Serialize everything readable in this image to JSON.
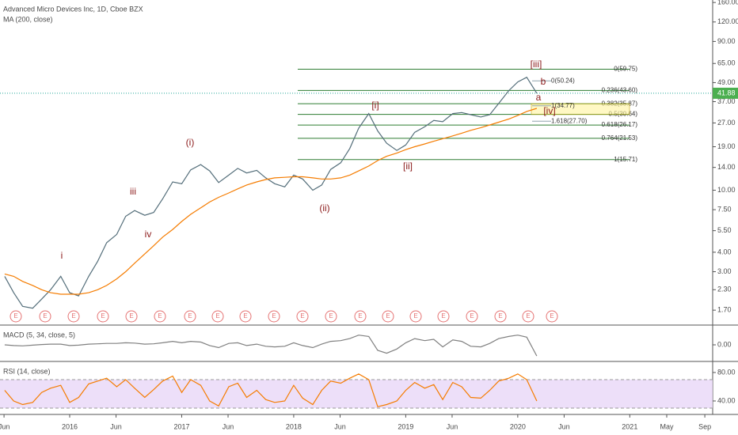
{
  "chart_data": [
    {
      "type": "line",
      "title": "Advanced Micro Devices Inc, 1D, Cboe BZX",
      "log_scale": true,
      "x": [
        2015.42,
        2015.5,
        2015.58,
        2015.67,
        2015.75,
        2015.83,
        2015.92,
        2016.0,
        2016.08,
        2016.17,
        2016.25,
        2016.33,
        2016.42,
        2016.5,
        2016.58,
        2016.67,
        2016.75,
        2016.83,
        2016.92,
        2017.0,
        2017.08,
        2017.17,
        2017.25,
        2017.33,
        2017.42,
        2017.5,
        2017.58,
        2017.67,
        2017.75,
        2017.83,
        2017.92,
        2018.0,
        2018.08,
        2018.17,
        2018.25,
        2018.33,
        2018.42,
        2018.5,
        2018.58,
        2018.67,
        2018.75,
        2018.83,
        2018.92,
        2019.0,
        2019.08,
        2019.17,
        2019.25,
        2019.33,
        2019.42,
        2019.5,
        2019.58,
        2019.67,
        2019.75,
        2019.83,
        2019.92,
        2020.0,
        2020.08,
        2020.17
      ],
      "series": [
        {
          "color": "#546e7a",
          "values": [
            2.8,
            2.2,
            1.8,
            1.75,
            2.0,
            2.3,
            2.8,
            2.2,
            2.1,
            2.8,
            3.5,
            4.6,
            5.2,
            6.8,
            7.4,
            6.9,
            7.2,
            8.8,
            11.3,
            11.0,
            13.5,
            14.6,
            13.3,
            11.2,
            12.5,
            13.8,
            12.9,
            13.4,
            12.0,
            11.0,
            10.5,
            12.5,
            11.8,
            10.0,
            10.8,
            13.6,
            15.0,
            18.5,
            25.0,
            31.0,
            24.0,
            20.0,
            18.0,
            19.5,
            23.5,
            25.5,
            28.0,
            27.5,
            31.0,
            31.5,
            30.5,
            29.5,
            30.5,
            36.0,
            43.5,
            49.5,
            53.0,
            41.88
          ]
        },
        {
          "name": "MA (200, close)",
          "color": "#f57c00",
          "values": [
            2.9,
            2.8,
            2.6,
            2.45,
            2.3,
            2.2,
            2.15,
            2.15,
            2.15,
            2.2,
            2.3,
            2.45,
            2.7,
            3.0,
            3.4,
            3.9,
            4.4,
            5.0,
            5.6,
            6.3,
            7.0,
            7.7,
            8.4,
            9.0,
            9.6,
            10.2,
            10.8,
            11.3,
            11.7,
            12.0,
            12.1,
            12.2,
            12.2,
            12.0,
            11.8,
            11.8,
            12.0,
            12.5,
            13.3,
            14.3,
            15.5,
            16.5,
            17.3,
            18.2,
            19.0,
            19.8,
            20.6,
            21.4,
            22.3,
            23.2,
            24.2,
            25.2,
            26.2,
            27.3,
            28.6,
            30.2,
            32.0,
            33.5
          ]
        }
      ],
      "last_price": 41.88,
      "xlim": [
        2015.378,
        2021.74
      ],
      "xticks": [
        {
          "value": 2015.414,
          "label": "Jun"
        },
        2016,
        {
          "value": 2016.414,
          "label": "Jun"
        },
        2017,
        {
          "value": 2017.414,
          "label": "Jun"
        },
        2018,
        {
          "value": 2018.414,
          "label": "Jun"
        },
        2019,
        {
          "value": 2019.414,
          "label": "Jun"
        },
        2020,
        {
          "value": 2020.414,
          "label": "Jun"
        },
        2021,
        {
          "value": 2021.33,
          "label": "May"
        },
        {
          "value": 2021.67,
          "label": "Sep"
        }
      ],
      "ylim": [
        1.38,
        166
      ],
      "yticks": [
        {
          "value": 1.7,
          "label": "1.70"
        },
        {
          "value": 2.3,
          "label": "2.30"
        },
        {
          "value": 3,
          "label": "3.00"
        },
        {
          "value": 4,
          "label": "4.00"
        },
        {
          "value": 5.5,
          "label": "5.50"
        },
        {
          "value": 7.5,
          "label": "7.50"
        },
        {
          "value": 10,
          "label": "10.00"
        },
        {
          "value": 14,
          "label": "14.00"
        },
        {
          "value": 19,
          "label": "19.00"
        },
        {
          "value": 27,
          "label": "27.00"
        },
        {
          "value": 37,
          "label": "37.00"
        },
        {
          "value": 49,
          "label": "49.00"
        },
        {
          "value": 65,
          "label": "65.00"
        },
        {
          "value": 90,
          "label": "90.00"
        },
        {
          "value": 120,
          "label": "120.00"
        },
        {
          "value": 160,
          "label": "160.00"
        }
      ],
      "fib_levels": [
        {
          "label": "0(59.75)",
          "value": 59.75
        },
        {
          "label": "0.236(43.60)",
          "value": 43.6
        },
        {
          "label": "0.382(35.87)",
          "value": 35.87
        },
        {
          "label": "0.5(30.64)",
          "value": 30.64
        },
        {
          "label": "0.618(26.17)",
          "value": 26.17
        },
        {
          "label": "0.764(21.53)",
          "value": 21.53
        },
        {
          "label": "1(15.71)",
          "value": 15.71
        }
      ],
      "fib_extension": [
        {
          "label": "0(50.24)",
          "value": 50.24
        },
        {
          "label": "1(34.77)",
          "value": 34.77
        },
        {
          "label": "1.618(27.70)",
          "value": 27.7
        }
      ],
      "wave_labels": [
        "i",
        "iii",
        "iv",
        "(i)",
        "(ii)",
        "[i]",
        "[ii]",
        "[iii]",
        "b",
        "a",
        "[iv]"
      ],
      "earnings_label": "E"
    },
    {
      "type": "line",
      "title": "MACD (5, 34, close, 5)",
      "x": [
        2015.42,
        2015.5,
        2015.58,
        2015.67,
        2015.75,
        2015.83,
        2015.92,
        2016.0,
        2016.08,
        2016.17,
        2016.25,
        2016.33,
        2016.42,
        2016.5,
        2016.58,
        2016.67,
        2016.75,
        2016.83,
        2016.92,
        2017.0,
        2017.08,
        2017.17,
        2017.25,
        2017.33,
        2017.42,
        2017.5,
        2017.58,
        2017.67,
        2017.75,
        2017.83,
        2017.92,
        2018.0,
        2018.08,
        2018.17,
        2018.25,
        2018.33,
        2018.42,
        2018.5,
        2018.58,
        2018.67,
        2018.75,
        2018.83,
        2018.92,
        2019.0,
        2019.08,
        2019.17,
        2019.25,
        2019.33,
        2019.42,
        2019.5,
        2019.58,
        2019.67,
        2019.75,
        2019.83,
        2019.92,
        2020.0,
        2020.08,
        2020.17
      ],
      "series": [
        {
          "color": "#808080",
          "values": [
            0.0,
            -0.1,
            -0.15,
            -0.05,
            0.05,
            0.1,
            0.1,
            -0.1,
            -0.05,
            0.1,
            0.15,
            0.2,
            0.2,
            0.3,
            0.25,
            0.1,
            0.15,
            0.3,
            0.5,
            0.3,
            0.5,
            0.4,
            -0.1,
            -0.4,
            0.2,
            0.3,
            -0.1,
            0.1,
            -0.2,
            -0.3,
            -0.2,
            0.3,
            -0.1,
            -0.4,
            0.1,
            0.5,
            0.6,
            0.9,
            1.4,
            1.2,
            -0.8,
            -1.2,
            -0.6,
            0.3,
            0.9,
            0.6,
            0.8,
            -0.3,
            0.7,
            0.5,
            -0.2,
            -0.3,
            0.2,
            0.9,
            1.2,
            1.4,
            1.1,
            -1.6
          ]
        }
      ],
      "ylim": [
        -2.5,
        2.5
      ],
      "yticks": [
        {
          "value": 0,
          "label": "0.00"
        }
      ]
    },
    {
      "type": "line",
      "title": "RSI (14, close)",
      "x": [
        2015.42,
        2015.5,
        2015.58,
        2015.67,
        2015.75,
        2015.83,
        2015.92,
        2016.0,
        2016.08,
        2016.17,
        2016.25,
        2016.33,
        2016.42,
        2016.5,
        2016.58,
        2016.67,
        2016.75,
        2016.83,
        2016.92,
        2017.0,
        2017.08,
        2017.17,
        2017.25,
        2017.33,
        2017.42,
        2017.5,
        2017.58,
        2017.67,
        2017.75,
        2017.83,
        2017.92,
        2018.0,
        2018.08,
        2018.17,
        2018.25,
        2018.33,
        2018.42,
        2018.5,
        2018.58,
        2018.67,
        2018.75,
        2018.83,
        2018.92,
        2019.0,
        2019.08,
        2019.17,
        2019.25,
        2019.33,
        2019.42,
        2019.5,
        2019.58,
        2019.67,
        2019.75,
        2019.83,
        2019.92,
        2020.0,
        2020.08,
        2020.17
      ],
      "series": [
        {
          "color": "#f57c00",
          "values": [
            55,
            40,
            35,
            38,
            52,
            58,
            62,
            38,
            45,
            64,
            68,
            72,
            60,
            70,
            58,
            45,
            56,
            68,
            75,
            52,
            70,
            62,
            40,
            33,
            60,
            65,
            45,
            55,
            42,
            38,
            40,
            62,
            44,
            35,
            55,
            68,
            65,
            72,
            78,
            70,
            32,
            35,
            40,
            55,
            66,
            58,
            63,
            42,
            66,
            60,
            45,
            44,
            55,
            68,
            72,
            78,
            70,
            40
          ]
        }
      ],
      "ylim": [
        23.3,
        93.3
      ],
      "yticks": [
        {
          "value": 80,
          "label": "80.00"
        },
        {
          "value": 40,
          "label": "40.00"
        }
      ],
      "bands": [
        30,
        70
      ]
    }
  ]
}
